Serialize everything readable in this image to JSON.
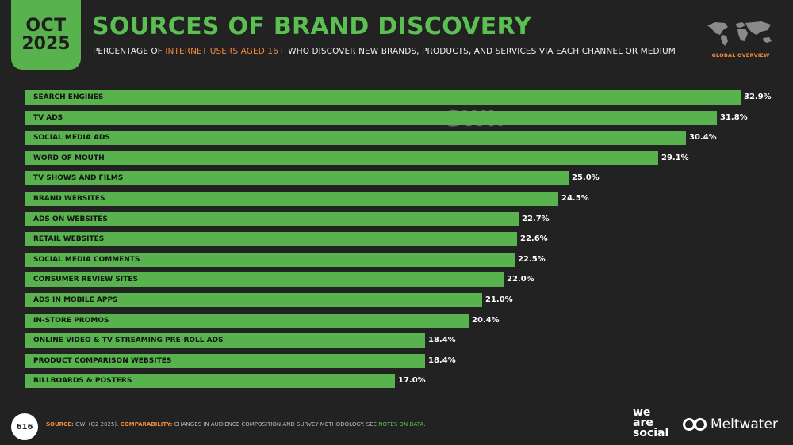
{
  "header": {
    "month": "OCT",
    "year": "2025",
    "title": "SOURCES OF BRAND DISCOVERY",
    "subtitle_pre": "PERCENTAGE OF ",
    "subtitle_highlight": "INTERNET USERS AGED 16+",
    "subtitle_post": " WHO DISCOVER NEW BRANDS, PRODUCTS, AND SERVICES VIA EACH CHANNEL OR MEDIUM",
    "region_label": "GLOBAL OVERVIEW"
  },
  "watermark": {
    "datareportal": "DATAREPORTAL",
    "gwi": "GWI."
  },
  "chart_data": {
    "type": "bar",
    "orientation": "horizontal",
    "categories": [
      "SEARCH ENGINES",
      "TV ADS",
      "SOCIAL MEDIA ADS",
      "WORD OF MOUTH",
      "TV SHOWS AND FILMS",
      "BRAND WEBSITES",
      "ADS ON WEBSITES",
      "RETAIL WEBSITES",
      "SOCIAL MEDIA COMMENTS",
      "CONSUMER REVIEW SITES",
      "ADS IN MOBILE APPS",
      "IN-STORE PROMOS",
      "ONLINE VIDEO & TV STREAMING PRE-ROLL ADS",
      "PRODUCT COMPARISON WEBSITES",
      "BILLBOARDS & POSTERS"
    ],
    "values": [
      32.9,
      31.8,
      30.4,
      29.1,
      25.0,
      24.5,
      22.7,
      22.6,
      22.5,
      22.0,
      21.0,
      20.4,
      18.4,
      18.4,
      17.0
    ],
    "value_labels": [
      "32.9%",
      "31.8%",
      "30.4%",
      "29.1%",
      "25.0%",
      "24.5%",
      "22.7%",
      "22.6%",
      "22.5%",
      "22.0%",
      "21.0%",
      "20.4%",
      "18.4%",
      "18.4%",
      "17.0%"
    ],
    "unit": "%",
    "xlim": [
      0,
      32.9
    ],
    "bar_color": "#58b24d",
    "grid": false
  },
  "footer": {
    "page_number": "616",
    "source_key": "SOURCE:",
    "source_text": " GWI (Q2 2025). ",
    "comparability_key": "COMPARABILITY:",
    "comparability_text": " CHANGES IN AUDIENCE COMPOSITION AND SURVEY METHODOLOGY. SEE ",
    "notes_link": "NOTES ON DATA",
    "end": ".",
    "brand1_line1": "we",
    "brand1_line2": "are",
    "brand1_line3": "social",
    "brand2": "Meltwater"
  },
  "colors": {
    "background": "#222222",
    "accent_green": "#5cbf52",
    "accent_orange": "#ee8a3c"
  }
}
